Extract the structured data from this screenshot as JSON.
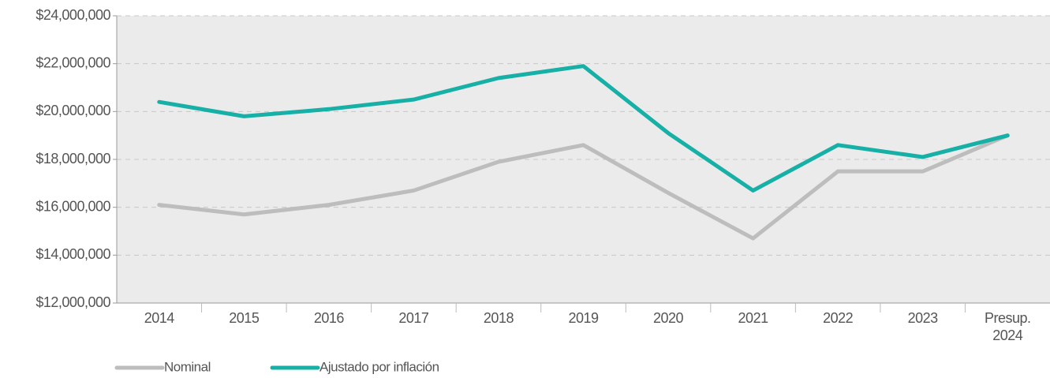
{
  "chart_data": {
    "type": "line",
    "categories": [
      "2014",
      "2015",
      "2016",
      "2017",
      "2018",
      "2019",
      "2020",
      "2021",
      "2022",
      "2023",
      "Presup. 2024"
    ],
    "series": [
      {
        "name": "Nominal",
        "color": "#bdbdbd",
        "values": [
          16100000,
          15700000,
          16100000,
          16700000,
          17900000,
          18600000,
          16600000,
          14700000,
          17500000,
          17500000,
          19000000
        ]
      },
      {
        "name": "Ajustado por inflación",
        "color": "#17b0a7",
        "values": [
          20400000,
          19800000,
          20100000,
          20500000,
          21400000,
          21900000,
          19100000,
          16700000,
          18600000,
          18100000,
          19000000
        ]
      }
    ],
    "ylim": [
      12000000,
      24000000
    ],
    "yticks": [
      {
        "value": 12000000,
        "label": "$12,000,000"
      },
      {
        "value": 14000000,
        "label": "$14,000,000"
      },
      {
        "value": 16000000,
        "label": "$16,000,000"
      },
      {
        "value": 18000000,
        "label": "$18,000,000"
      },
      {
        "value": 20000000,
        "label": "$20,000,000"
      },
      {
        "value": 22000000,
        "label": "$22,000,000"
      },
      {
        "value": 24000000,
        "label": "$24,000,000"
      }
    ],
    "grid": true,
    "legend": "bottom-left"
  }
}
